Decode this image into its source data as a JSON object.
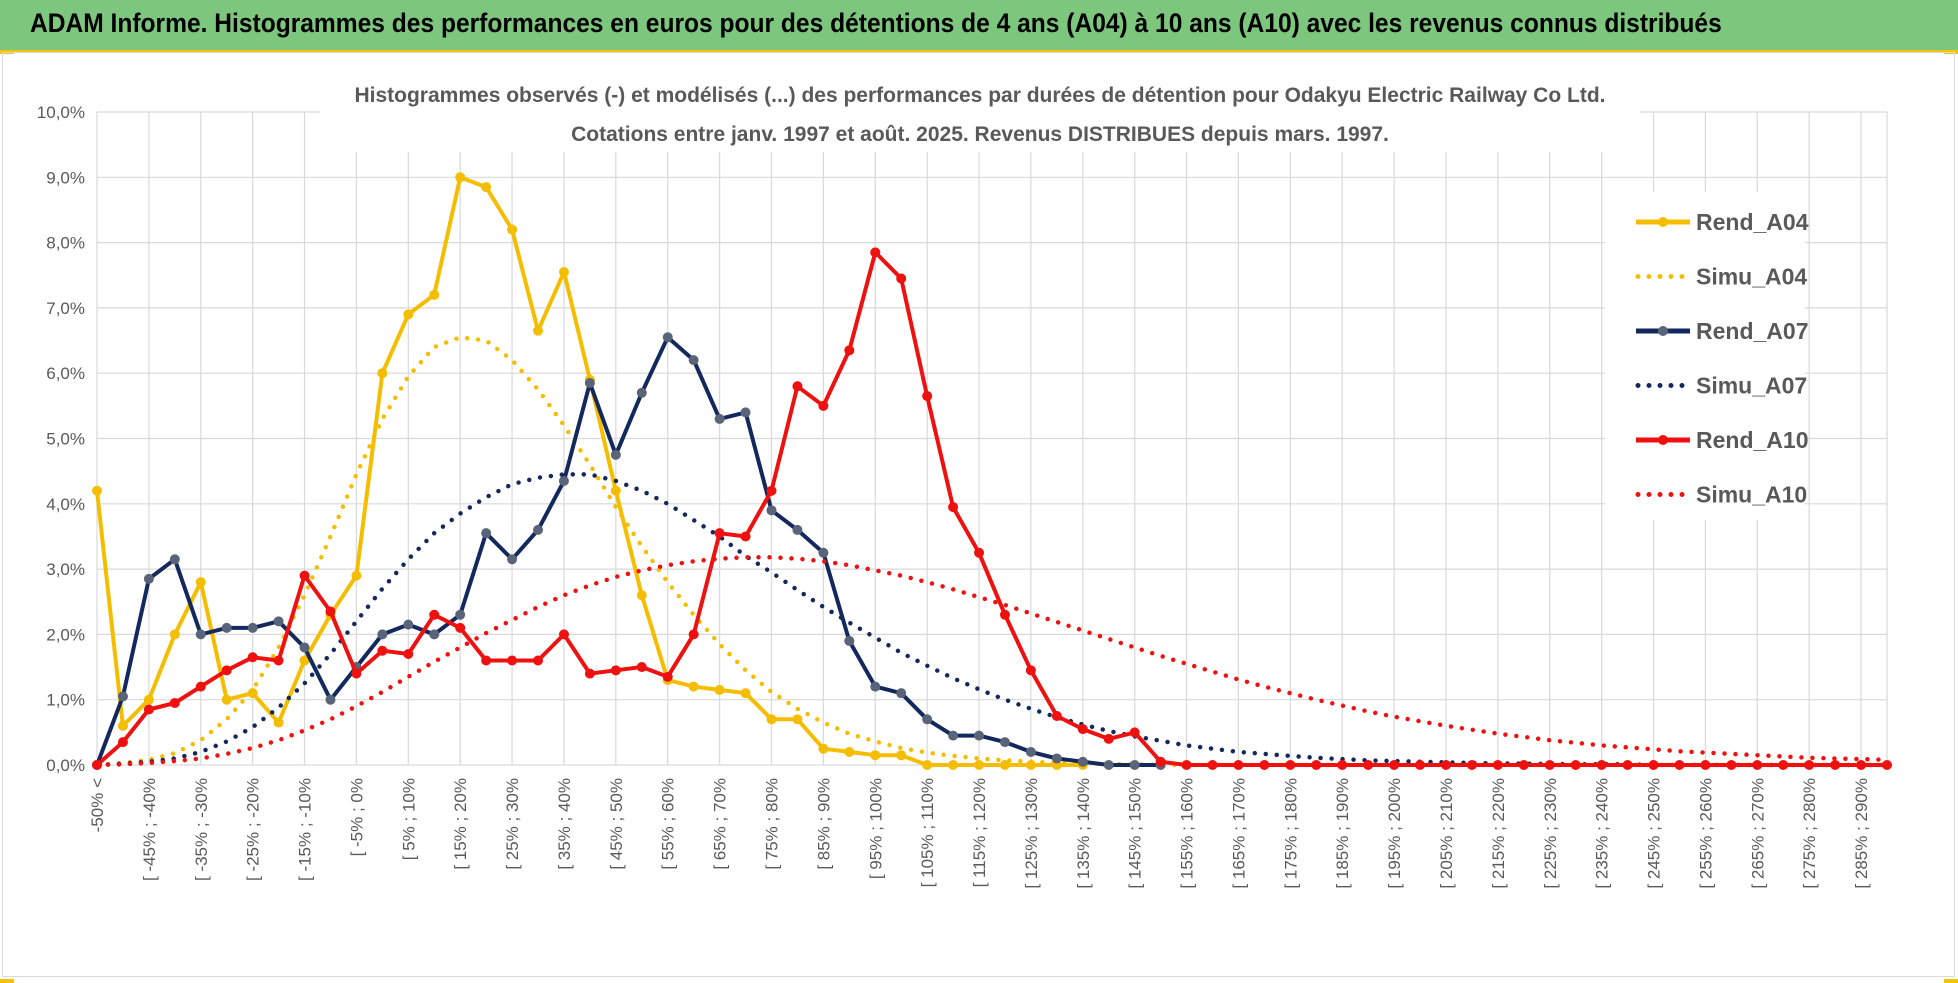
{
  "header": {
    "title": "ADAM Informe. Histogrammes des performances en euros pour des détentions de 4 ans (A04) à 10 ans (A10) avec les revenus connus distribués"
  },
  "colors": {
    "header_bg": "#7dc67d",
    "accent": "#f5c400",
    "a04": "#f5bd00",
    "a07": "#13285c",
    "a10": "#ef1010"
  },
  "chart_data": {
    "type": "line",
    "title": "Histogrammes observés (-) et modélisés (...) des performances par durées de détention pour Odakyu Electric Railway Co Ltd.",
    "subtitle": "Cotations entre janv. 1997 et août. 2025. Revenus DISTRIBUES depuis mars. 1997.",
    "xlabel": "",
    "ylabel": "",
    "ylim": [
      0,
      10
    ],
    "yticks": [
      "0,0%",
      "1,0%",
      "2,0%",
      "3,0%",
      "4,0%",
      "5,0%",
      "6,0%",
      "7,0%",
      "8,0%",
      "9,0%",
      "10,0%"
    ],
    "grid": true,
    "legend_position": "right",
    "categories": [
      "-50% <",
      "[ -50% ; -45%",
      "[ -45% ; -40%",
      "[ -40% ; -35%",
      "[ -35% ; -30%",
      "[ -30% ; -25%",
      "[ -25% ; -20%",
      "[ -20% ; -15%",
      "[ -15% ; -10%",
      "[ -10% ; -5%",
      "[ -5% ; 0%",
      "[ 0% ; 5%",
      "[ 5% ; 10%",
      "[ 10% ; 15%",
      "[ 15% ; 20%",
      "[ 20% ; 25%",
      "[ 25% ; 30%",
      "[ 30% ; 35%",
      "[ 35% ; 40%",
      "[ 40% ; 45%",
      "[ 45% ; 50%",
      "[ 50% ; 55%",
      "[ 55% ; 60%",
      "[ 60% ; 65%",
      "[ 65% ; 70%",
      "[ 70% ; 75%",
      "[ 75% ; 80%",
      "[ 80% ; 85%",
      "[ 85% ; 90%",
      "[ 90% ; 95%",
      "[ 95% ; 100%",
      "[ 100% ; 105%",
      "[ 105% ; 110%",
      "[ 110% ; 115%",
      "[ 115% ; 120%",
      "[ 120% ; 125%",
      "[ 125% ; 130%",
      "[ 130% ; 135%",
      "[ 135% ; 140%",
      "[ 140% ; 145%",
      "[ 145% ; 150%",
      "[ 150% ; 155%",
      "[ 155% ; 160%",
      "[ 160% ; 165%",
      "[ 165% ; 170%",
      "[ 170% ; 175%",
      "[ 175% ; 180%",
      "[ 180% ; 185%",
      "[ 185% ; 190%",
      "[ 190% ; 195%",
      "[ 195% ; 200%",
      "[ 200% ; 205%",
      "[ 205% ; 210%",
      "[ 210% ; 215%",
      "[ 215% ; 220%",
      "[ 220% ; 225%",
      "[ 225% ; 230%",
      "[ 230% ; 235%",
      "[ 235% ; 240%",
      "[ 240% ; 245%",
      "[ 245% ; 250%",
      "[ 250% ; 255%",
      "[ 255% ; 260%",
      "[ 260% ; 265%",
      "[ 265% ; 270%",
      "[ 270% ; 275%",
      "[ 275% ; 280%",
      "[ 280% ; 285%",
      "[ 285% ; 290%",
      "[ 290% ; 295%"
    ],
    "visible_tick_labels": [
      "-50% <",
      "[ -45% ; -40%",
      "[ -35% ; -30%",
      "[ -25% ; -20%",
      "[ -15% ; -10%",
      "[ -5% ; 0%",
      "[ 5% ; 10%",
      "[ 15% ; 20%",
      "[ 25% ; 30%",
      "[ 35% ; 40%",
      "[ 45% ; 50%",
      "[ 55% ; 60%",
      "[ 65% ; 70%",
      "[ 75% ; 80%",
      "[ 85% ; 90%",
      "[ 95% ; 100%",
      "[ 105% ; 110%",
      "[ 115% ; 120%",
      "[ 125% ; 130%",
      "[ 135% ; 140%",
      "[ 145% ; 150%",
      "[ 155% ; 160%",
      "[ 165% ; 170%",
      "[ 175% ; 180%",
      "[ 185% ; 190%",
      "[ 195% ; 200%",
      "[ 205% ; 210%",
      "[ 215% ; 220%",
      "[ 225% ; 230%",
      "[ 235% ; 240%",
      "[ 245% ; 250%",
      "[ 255% ; 260%",
      "[ 265% ; 270%",
      "[ 275% ; 280%",
      "[ 285% ; 290%"
    ],
    "series": [
      {
        "name": "Rend_A04",
        "style": "solid",
        "markers": true,
        "color": "#f5bd00",
        "values": [
          4.2,
          0.6,
          1.0,
          2.0,
          2.8,
          1.0,
          1.1,
          0.65,
          1.6,
          2.3,
          2.9,
          6.0,
          6.9,
          7.2,
          9.0,
          8.85,
          8.2,
          6.65,
          7.55,
          5.9,
          4.2,
          2.6,
          1.3,
          1.2,
          1.15,
          1.1,
          0.7,
          0.7,
          0.25,
          0.2,
          0.15,
          0.15,
          0.0,
          0.0,
          0.0,
          0.0,
          0.0,
          0.0,
          0.0,
          null,
          null,
          null,
          null,
          null,
          null,
          null,
          null,
          null,
          null,
          null,
          null,
          null,
          null,
          null,
          null,
          null,
          null,
          null,
          null,
          null,
          null,
          null,
          null,
          null,
          null,
          null,
          null,
          null,
          null,
          null
        ]
      },
      {
        "name": "Simu_A04",
        "style": "dotted",
        "markers": false,
        "color": "#f5bd00",
        "values": [
          0.0,
          0.03,
          0.08,
          0.18,
          0.38,
          0.7,
          1.15,
          1.8,
          2.6,
          3.5,
          4.45,
          5.3,
          5.95,
          6.4,
          6.55,
          6.5,
          6.2,
          5.75,
          5.2,
          4.6,
          3.95,
          3.35,
          2.8,
          2.3,
          1.85,
          1.45,
          1.12,
          0.86,
          0.65,
          0.48,
          0.36,
          0.26,
          0.19,
          0.14,
          0.1,
          0.07,
          0.05,
          0.03,
          0.02,
          0.015,
          0.01,
          0.0,
          0.0,
          0.0,
          0.0,
          0.0,
          0.0,
          0.0,
          0.0,
          0.0,
          0.0,
          0.0,
          0.0,
          0.0,
          0.0,
          0.0,
          0.0,
          0.0,
          0.0,
          0.0,
          0.0,
          0.0,
          0.0,
          0.0,
          0.0,
          0.0,
          0.0,
          0.0,
          0.0,
          0.0
        ]
      },
      {
        "name": "Rend_A07",
        "style": "solid",
        "markers": true,
        "color": "#13285c",
        "values": [
          0.0,
          1.05,
          2.85,
          3.15,
          2.0,
          2.1,
          2.1,
          2.2,
          1.8,
          1.0,
          1.5,
          2.0,
          2.15,
          2.0,
          2.3,
          3.55,
          3.15,
          3.6,
          4.35,
          5.85,
          4.75,
          5.7,
          6.55,
          6.2,
          5.3,
          5.4,
          3.9,
          3.6,
          3.25,
          1.9,
          1.2,
          1.1,
          0.7,
          0.45,
          0.45,
          0.35,
          0.2,
          0.1,
          0.05,
          0.0,
          0.0,
          0.0,
          null,
          null,
          null,
          null,
          null,
          null,
          null,
          null,
          null,
          null,
          null,
          null,
          null,
          null,
          null,
          null,
          null,
          null,
          null,
          null,
          null,
          null,
          null,
          null,
          null,
          null,
          null,
          null
        ]
      },
      {
        "name": "Simu_A07",
        "style": "dotted",
        "markers": false,
        "color": "#13285c",
        "values": [
          0.0,
          0.02,
          0.05,
          0.1,
          0.2,
          0.36,
          0.58,
          0.88,
          1.25,
          1.7,
          2.2,
          2.7,
          3.15,
          3.55,
          3.85,
          4.1,
          4.3,
          4.4,
          4.45,
          4.45,
          4.35,
          4.2,
          4.0,
          3.75,
          3.5,
          3.2,
          2.95,
          2.68,
          2.42,
          2.18,
          1.95,
          1.72,
          1.52,
          1.33,
          1.16,
          1.0,
          0.86,
          0.73,
          0.62,
          0.52,
          0.44,
          0.37,
          0.3,
          0.25,
          0.2,
          0.17,
          0.14,
          0.11,
          0.09,
          0.07,
          0.06,
          0.05,
          0.04,
          0.03,
          0.025,
          0.02,
          0.015,
          0.01,
          0.01,
          0.01,
          0.0,
          0.0,
          0.0,
          0.0,
          0.0,
          0.0,
          0.0,
          0.0,
          0.0,
          0.0
        ]
      },
      {
        "name": "Rend_A10",
        "style": "solid",
        "markers": true,
        "color": "#ef1010",
        "values": [
          0.0,
          0.35,
          0.85,
          0.95,
          1.2,
          1.45,
          1.65,
          1.6,
          2.9,
          2.35,
          1.4,
          1.75,
          1.7,
          2.3,
          2.1,
          1.6,
          1.6,
          1.6,
          2.0,
          1.4,
          1.45,
          1.5,
          1.35,
          2.0,
          3.55,
          3.5,
          4.2,
          5.8,
          5.5,
          6.35,
          7.85,
          7.45,
          5.65,
          3.95,
          3.25,
          2.3,
          1.45,
          0.75,
          0.55,
          0.4,
          0.5,
          0.05,
          0.0,
          0.0,
          0.0,
          0.0,
          0.0,
          0.0,
          0.0,
          0.0,
          0.0,
          0.0,
          0.0,
          0.0,
          0.0,
          0.0,
          0.0,
          0.0,
          0.0,
          0.0,
          0.0,
          0.0,
          0.0,
          0.0,
          0.0,
          0.0,
          0.0,
          0.0,
          0.0,
          0.0
        ]
      },
      {
        "name": "Simu_A10",
        "style": "dotted",
        "markers": false,
        "color": "#ef1010",
        "values": [
          0.0,
          0.01,
          0.03,
          0.06,
          0.1,
          0.17,
          0.26,
          0.38,
          0.53,
          0.7,
          0.9,
          1.12,
          1.35,
          1.58,
          1.8,
          2.02,
          2.22,
          2.42,
          2.6,
          2.75,
          2.88,
          2.98,
          3.06,
          3.12,
          3.16,
          3.18,
          3.18,
          3.16,
          3.12,
          3.06,
          2.98,
          2.9,
          2.8,
          2.69,
          2.57,
          2.45,
          2.32,
          2.19,
          2.06,
          1.93,
          1.8,
          1.67,
          1.55,
          1.43,
          1.31,
          1.2,
          1.1,
          1.0,
          0.91,
          0.82,
          0.74,
          0.67,
          0.6,
          0.54,
          0.48,
          0.43,
          0.38,
          0.34,
          0.3,
          0.27,
          0.24,
          0.21,
          0.19,
          0.17,
          0.15,
          0.13,
          0.11,
          0.1,
          0.09,
          0.08
        ]
      }
    ]
  }
}
